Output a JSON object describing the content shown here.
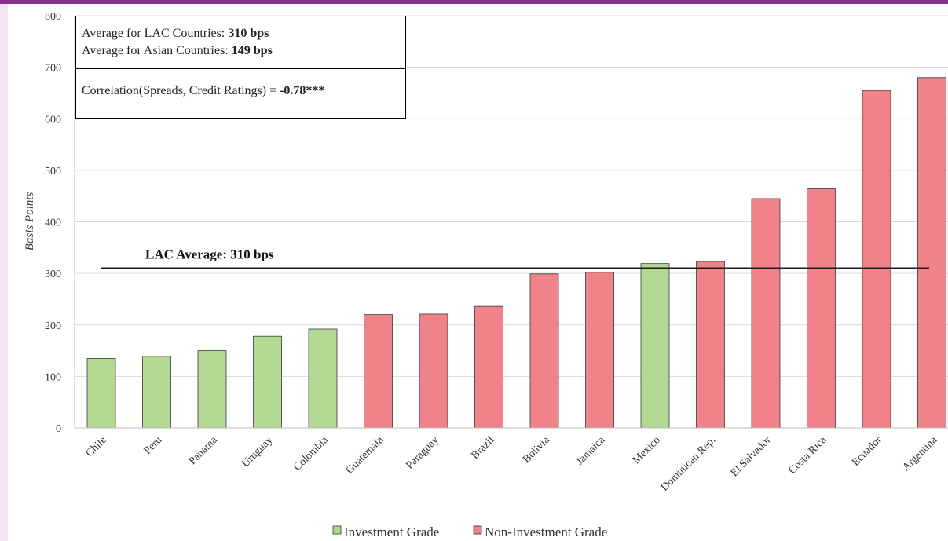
{
  "chart_data": {
    "type": "bar",
    "categories": [
      "Chile",
      "Peru",
      "Panama",
      "Uruguay",
      "Colombia",
      "Guatemala",
      "Paraguay",
      "Brazil",
      "Bolivia",
      "Jamaica",
      "Mexico",
      "Dominican Rep.",
      "El Salvador",
      "Costa Rica",
      "Ecuador",
      "Argentina"
    ],
    "values": [
      135,
      139,
      150,
      178,
      192,
      220,
      221,
      236,
      299,
      302,
      319,
      323,
      445,
      464,
      655,
      680
    ],
    "grade": [
      "Investment Grade",
      "Investment Grade",
      "Investment Grade",
      "Investment Grade",
      "Investment Grade",
      "Non-Investment Grade",
      "Non-Investment Grade",
      "Non-Investment Grade",
      "Non-Investment Grade",
      "Non-Investment Grade",
      "Investment Grade",
      "Non-Investment Grade",
      "Non-Investment Grade",
      "Non-Investment Grade",
      "Non-Investment Grade",
      "Non-Investment Grade"
    ],
    "ylabel": "Basis Points",
    "xlabel": "",
    "ylim": [
      0,
      800
    ],
    "yticks": [
      0,
      100,
      200,
      300,
      400,
      500,
      600,
      700,
      800
    ],
    "grid": true,
    "reference_line": {
      "value": 310,
      "label": "LAC Average: 310 bps"
    },
    "legend": {
      "placement": "bottom",
      "items": [
        {
          "label": "Investment Grade",
          "color": "#b3d894"
        },
        {
          "label": "Non-Investment Grade",
          "color": "#f08289"
        }
      ]
    }
  },
  "info_box": {
    "lac_prefix": "Average for LAC Countries: ",
    "lac_value": "310 bps",
    "asia_prefix": "Average for Asian Countries: ",
    "asia_value": "149 bps",
    "corr_prefix": "Correlation(Spreads, Credit Ratings) = ",
    "corr_value": "-0.78***"
  },
  "colors": {
    "accent": "#8b2d8f",
    "sidebar": "#f6e4f6",
    "investment": "#b3d894",
    "non_investment": "#f08289"
  }
}
